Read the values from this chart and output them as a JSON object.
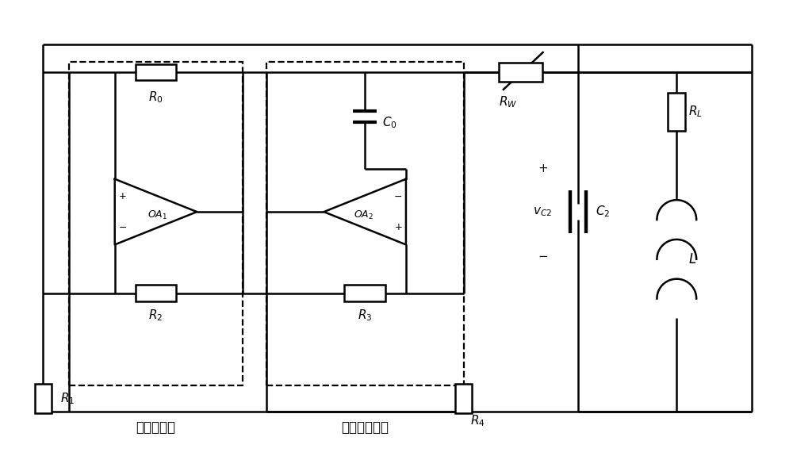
{
  "bg_color": "#ffffff",
  "line_color": "#000000",
  "label_box1": "线性负电阻",
  "label_box2": "分段线性电容"
}
